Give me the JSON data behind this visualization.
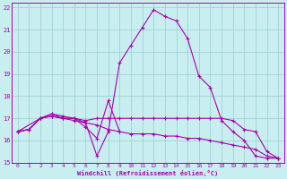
{
  "xlabel": "Windchill (Refroidissement éolien,°C)",
  "bg_color": "#c8eef0",
  "line_color": "#aa00aa",
  "grid_color": "#99cccc",
  "xlim": [
    -0.5,
    23.5
  ],
  "ylim": [
    15.0,
    22.2
  ],
  "yticks": [
    15,
    16,
    17,
    18,
    19,
    20,
    21,
    22
  ],
  "xticks": [
    0,
    1,
    2,
    3,
    4,
    5,
    6,
    7,
    8,
    9,
    10,
    11,
    12,
    13,
    14,
    15,
    16,
    17,
    18,
    19,
    20,
    21,
    22,
    23
  ],
  "lines": [
    {
      "x": [
        0,
        1,
        2,
        3,
        4,
        5,
        6,
        7,
        8,
        9,
        10,
        11,
        12,
        13,
        14,
        15,
        16,
        17,
        18,
        19,
        20,
        21,
        22,
        23
      ],
      "y": [
        16.4,
        16.5,
        17.0,
        17.2,
        17.0,
        17.0,
        16.8,
        15.3,
        16.4,
        19.5,
        20.3,
        21.1,
        21.9,
        21.6,
        21.4,
        20.6,
        18.9,
        18.4,
        16.9,
        16.4,
        16.0,
        15.3,
        15.2,
        15.2
      ]
    },
    {
      "x": [
        0,
        1,
        2,
        3,
        4,
        5,
        6,
        7,
        8,
        9,
        10,
        11,
        12,
        13,
        14,
        15,
        16,
        17,
        18,
        19,
        20,
        21,
        22,
        23
      ],
      "y": [
        16.4,
        16.5,
        17.0,
        17.1,
        17.0,
        17.0,
        16.9,
        17.0,
        17.0,
        17.0,
        17.0,
        17.0,
        17.0,
        17.0,
        17.0,
        17.0,
        17.0,
        17.0,
        17.0,
        16.9,
        16.5,
        16.4,
        15.5,
        15.2
      ]
    },
    {
      "x": [
        0,
        1,
        2,
        3,
        4,
        5,
        6,
        7,
        8,
        9,
        10,
        11,
        12,
        13,
        14,
        15,
        16,
        17,
        18,
        19,
        20,
        21,
        22,
        23
      ],
      "y": [
        16.4,
        16.5,
        17.0,
        17.1,
        17.0,
        16.9,
        16.8,
        16.7,
        16.5,
        16.4,
        16.3,
        16.3,
        16.3,
        16.2,
        16.2,
        16.1,
        16.1,
        16.0,
        15.9,
        15.8,
        15.7,
        15.6,
        15.3,
        15.2
      ]
    },
    {
      "x": [
        0,
        2,
        3,
        4,
        5,
        6,
        7,
        8,
        9
      ],
      "y": [
        16.4,
        17.0,
        17.2,
        17.1,
        17.0,
        16.6,
        16.1,
        17.8,
        16.4
      ]
    }
  ]
}
